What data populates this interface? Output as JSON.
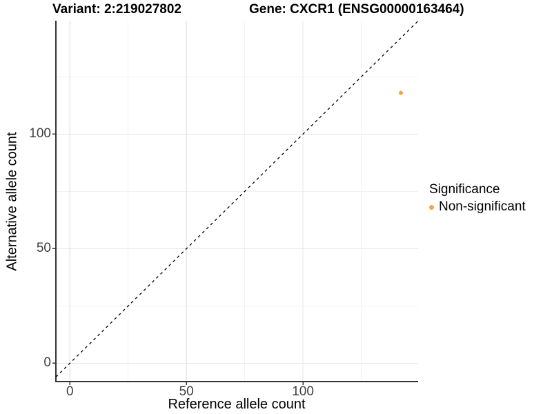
{
  "title": {
    "variant": "Variant: 2:219027802",
    "gene": "Gene: CXCR1 (ENSG00000163464)"
  },
  "axes": {
    "x_label": "Reference allele count",
    "y_label": "Alternative allele count"
  },
  "legend": {
    "title": "Significance",
    "items": [
      {
        "label": "Non-significant",
        "color": "#F9A242"
      }
    ]
  },
  "chart_data": {
    "type": "scatter",
    "title": "Variant: 2:219027802    Gene: CXCR1 (ENSG00000163464)",
    "xlabel": "Reference allele count",
    "ylabel": "Alternative allele count",
    "points": [
      {
        "x": 142,
        "y": 118,
        "series": "Non-significant",
        "color": "#F9A242"
      }
    ],
    "xlim": [
      -6,
      149.4
    ],
    "ylim": [
      -8,
      149.5
    ],
    "x_ticks": [
      0,
      50,
      100
    ],
    "y_ticks": [
      0,
      50,
      100
    ],
    "x_minor_ticks": [
      25,
      75,
      125
    ],
    "y_minor_ticks": [
      25,
      75,
      125
    ],
    "identity_line": {
      "type": "abline",
      "slope": 1,
      "intercept": 0,
      "style": "dashed",
      "color": "#000000"
    },
    "grid": "major+minor",
    "legend_position": "right",
    "colors": {
      "major_grid": "#e7e7e7",
      "minor_grid": "#f2f2f2",
      "axis_line": "#333333",
      "tick_text": "#404040",
      "point": "#F9A242"
    }
  }
}
